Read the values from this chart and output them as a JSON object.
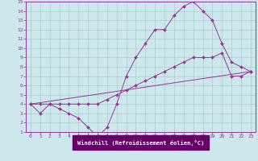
{
  "xlabel": "Windchill (Refroidissement éolien,°C)",
  "xlim": [
    -0.5,
    23.5
  ],
  "ylim": [
    1,
    15
  ],
  "xticks": [
    0,
    1,
    2,
    3,
    4,
    5,
    6,
    7,
    8,
    9,
    10,
    11,
    12,
    13,
    14,
    15,
    16,
    17,
    18,
    19,
    20,
    21,
    22,
    23
  ],
  "yticks": [
    1,
    2,
    3,
    4,
    5,
    6,
    7,
    8,
    9,
    10,
    11,
    12,
    13,
    14,
    15
  ],
  "bg_color": "#cce8ec",
  "line_color": "#993399",
  "grid_color": "#aacccc",
  "xlabel_bg": "#660066",
  "line1_x": [
    0,
    1,
    2,
    3,
    4,
    5,
    6,
    7,
    8,
    9,
    10,
    11,
    12,
    13,
    14,
    15,
    16,
    17,
    18,
    19,
    20,
    21,
    22,
    23
  ],
  "line1_y": [
    4,
    3,
    4,
    3.5,
    3,
    2.5,
    1.5,
    0.5,
    1.5,
    4,
    7,
    9,
    10.5,
    12,
    12,
    13.5,
    14.5,
    15,
    14,
    13,
    10.5,
    8.5,
    8,
    7.5
  ],
  "line2_x": [
    0,
    1,
    2,
    3,
    4,
    5,
    6,
    7,
    8,
    9,
    10,
    11,
    12,
    13,
    14,
    15,
    16,
    17,
    18,
    19,
    20,
    21,
    22,
    23
  ],
  "line2_y": [
    4,
    4,
    4,
    4,
    4,
    4,
    4,
    4,
    4.5,
    5,
    5.5,
    6,
    6.5,
    7,
    7.5,
    8,
    8.5,
    9,
    9,
    9,
    9.5,
    7,
    7,
    7.5
  ],
  "line3_x": [
    0,
    23
  ],
  "line3_y": [
    4,
    7.5
  ]
}
